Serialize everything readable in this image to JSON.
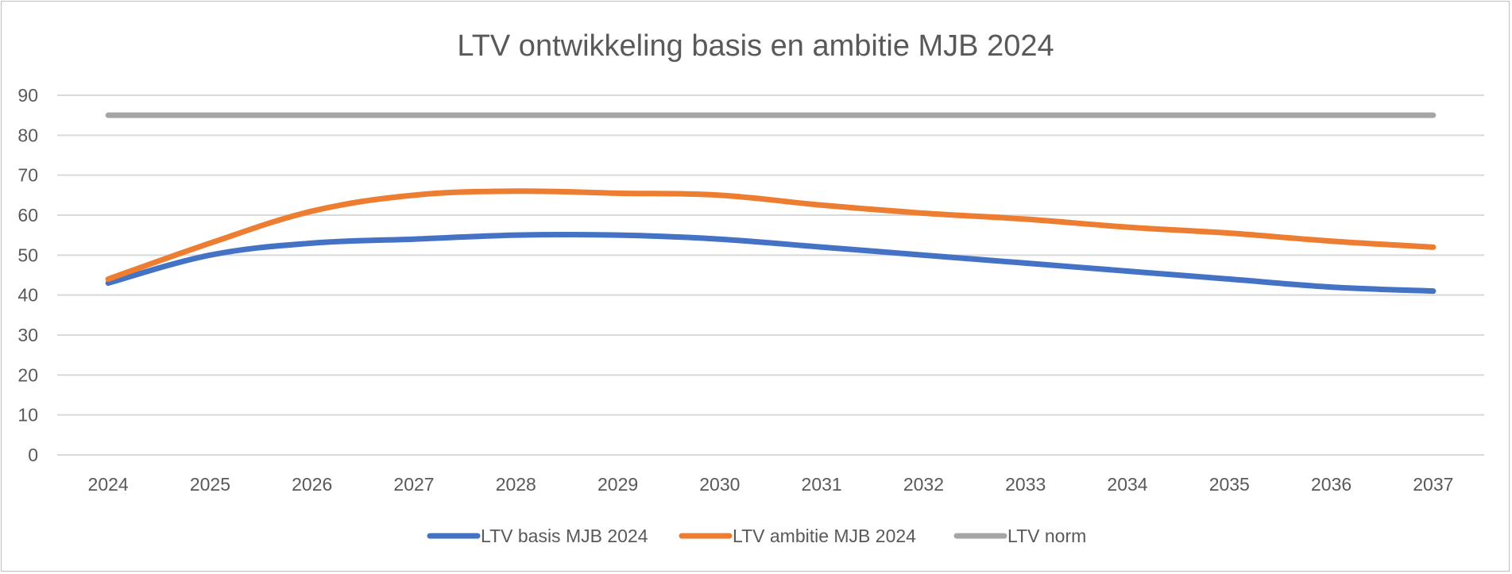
{
  "chart_data": {
    "type": "line",
    "title": "LTV ontwikkeling basis en ambitie MJB 2024",
    "xlabel": "",
    "ylabel": "",
    "ylim": [
      0,
      90
    ],
    "yticks": [
      0,
      10,
      20,
      30,
      40,
      50,
      60,
      70,
      80,
      90
    ],
    "grid": true,
    "legend_position": "bottom",
    "categories": [
      "2024",
      "2025",
      "2026",
      "2027",
      "2028",
      "2029",
      "2030",
      "2031",
      "2032",
      "2033",
      "2034",
      "2035",
      "2036",
      "2037"
    ],
    "series": [
      {
        "name": "LTV basis MJB 2024",
        "color": "#4472c4",
        "values": [
          43,
          50,
          53,
          54,
          55,
          55,
          54,
          52,
          50,
          48,
          46,
          44,
          42,
          41
        ]
      },
      {
        "name": "LTV ambitie MJB 2024",
        "color": "#ed7d31",
        "values": [
          44,
          53,
          61,
          65,
          66,
          65.5,
          65,
          62.5,
          60.5,
          59,
          57,
          55.5,
          53.5,
          52
        ]
      },
      {
        "name": "LTV norm",
        "color": "#a5a5a5",
        "values": [
          85,
          85,
          85,
          85,
          85,
          85,
          85,
          85,
          85,
          85,
          85,
          85,
          85,
          85
        ]
      }
    ]
  }
}
